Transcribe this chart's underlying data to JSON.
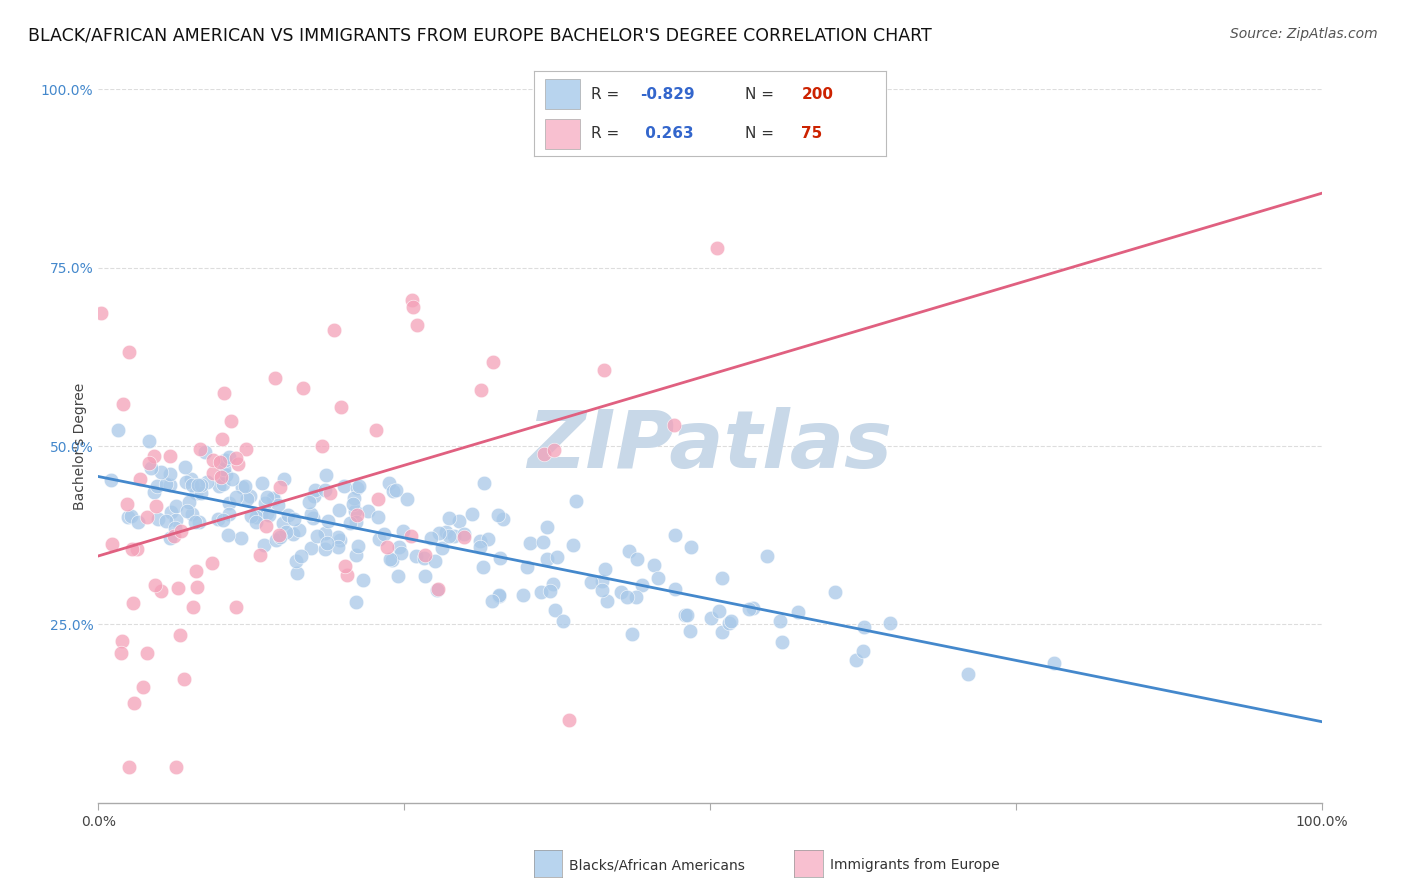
{
  "title": "BLACK/AFRICAN AMERICAN VS IMMIGRANTS FROM EUROPE BACHELOR'S DEGREE CORRELATION CHART",
  "source": "Source: ZipAtlas.com",
  "ylabel": "Bachelor's Degree",
  "watermark": "ZIPatlas",
  "blue_R": -0.829,
  "blue_N": 200,
  "pink_R": 0.263,
  "pink_N": 75,
  "blue_scatter_color": "#a8c8e8",
  "pink_scatter_color": "#f4a0b8",
  "blue_line_color": "#4488cc",
  "pink_line_color": "#e06080",
  "legend_box_blue": "#b8d4ee",
  "legend_box_pink": "#f8c0d0",
  "background_color": "#ffffff",
  "grid_color": "#dddddd",
  "title_fontsize": 12.5,
  "source_fontsize": 10,
  "axis_label_fontsize": 10,
  "tick_fontsize": 10,
  "watermark_color": "#c8d8e8",
  "legend_text_color_dark": "#333333",
  "legend_text_color_blue": "#3366cc",
  "legend_text_color_red": "#cc2200",
  "ytick_color": "#4488cc",
  "xmin": 0.0,
  "xmax": 1.0,
  "ymin": 0.0,
  "ymax": 1.0,
  "y_ticks": [
    0.25,
    0.5,
    0.75,
    1.0
  ],
  "y_tick_labels": [
    "25.0%",
    "50.0%",
    "75.0%",
    "100.0%"
  ]
}
